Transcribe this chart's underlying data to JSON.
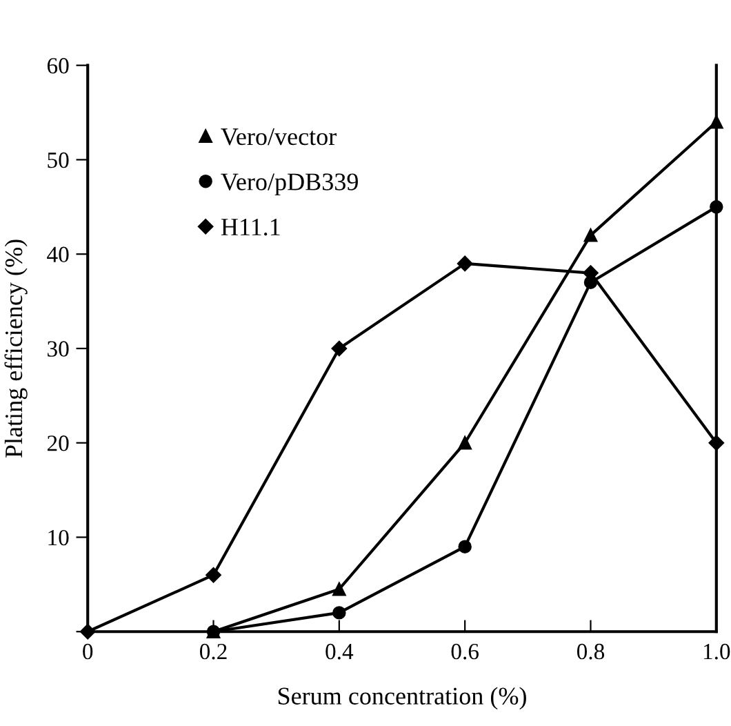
{
  "chart_data": {
    "type": "line",
    "xlabel": "Serum concentration (%)",
    "ylabel": "Plating efficiency (%)",
    "x": [
      0,
      0.2,
      0.4,
      0.6,
      0.8,
      1.0
    ],
    "xlim": [
      0,
      1.0
    ],
    "xticks": [
      0,
      0.2,
      0.4,
      0.6,
      0.8,
      {
        "value": 1.0,
        "label": "1.0"
      }
    ],
    "ylim": [
      0,
      60
    ],
    "yticks": [
      {
        "value": 0,
        "label": null
      },
      10,
      20,
      30,
      40,
      50,
      60
    ],
    "grid": false,
    "legend": "top left",
    "line_style": "solid",
    "series": [
      {
        "name": "Vero/vector",
        "color": "#000000",
        "marker": "triangle",
        "x": [
          0.2,
          0.4,
          0.6,
          0.8,
          1.0
        ],
        "values": [
          0,
          4.5,
          20,
          42,
          54
        ]
      },
      {
        "name": "Vero/pDB339",
        "color": "#000000",
        "marker": "circle",
        "x": [
          0.2,
          0.4,
          0.6,
          0.8,
          1.0
        ],
        "values": [
          0,
          2,
          9,
          37,
          45
        ]
      },
      {
        "name": "H11.1",
        "color": "#000000",
        "marker": "diamond",
        "values": [
          0,
          6,
          30,
          39,
          38,
          20
        ]
      }
    ]
  }
}
